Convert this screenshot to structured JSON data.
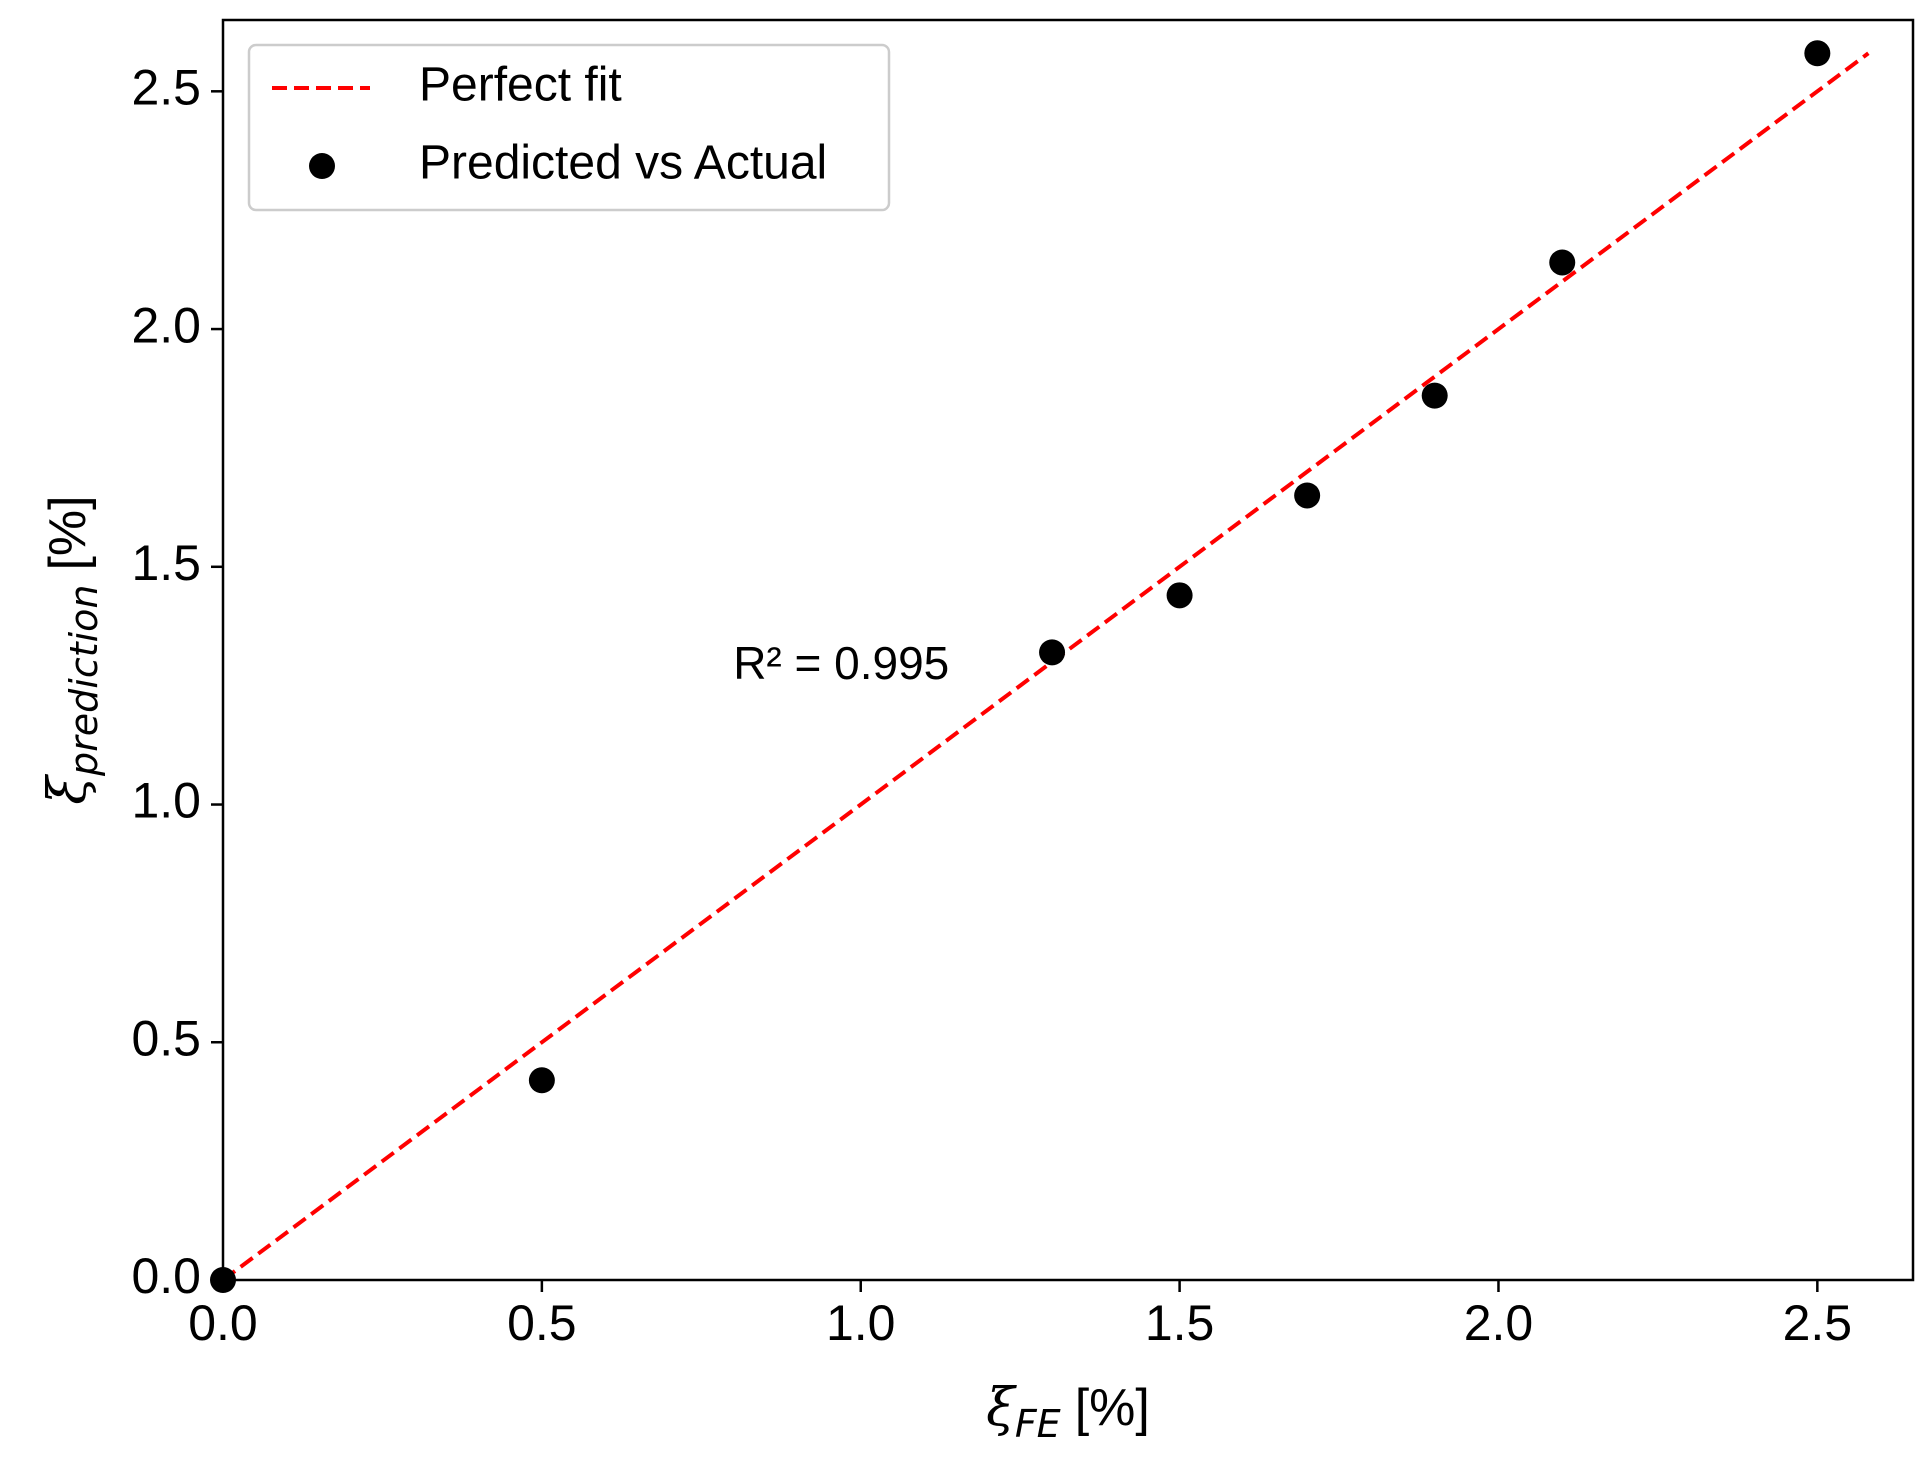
{
  "chart_data": {
    "type": "scatter",
    "x_axis": {
      "symbol": "ξ",
      "subscript": "FE",
      "unit": "[%]",
      "lim": [
        0.0,
        2.65
      ],
      "ticks": [
        0.0,
        0.5,
        1.0,
        1.5,
        2.0,
        2.5
      ],
      "tick_labels": [
        "0.0",
        "0.5",
        "1.0",
        "1.5",
        "2.0",
        "2.5"
      ]
    },
    "y_axis": {
      "symbol": "ξ",
      "subscript": "prediction",
      "unit": "[%]",
      "lim": [
        0.0,
        2.65
      ],
      "ticks": [
        0.0,
        0.5,
        1.0,
        1.5,
        2.0,
        2.5
      ],
      "tick_labels": [
        "0.0",
        "0.5",
        "1.0",
        "1.5",
        "2.0",
        "2.5"
      ]
    },
    "grid": false,
    "legend_position": "top-left",
    "series": [
      {
        "name": "Perfect fit",
        "kind": "line",
        "style": "dashed",
        "color": "#ff0000",
        "x": [
          0.0,
          2.58
        ],
        "y": [
          0.0,
          2.58
        ]
      },
      {
        "name": "Predicted vs Actual",
        "kind": "scatter",
        "color": "#000000",
        "x": [
          0.0,
          0.5,
          1.3,
          1.5,
          1.7,
          1.9,
          2.1,
          2.5
        ],
        "y": [
          0.0,
          0.42,
          1.32,
          1.44,
          1.65,
          1.86,
          2.14,
          2.58
        ]
      }
    ],
    "annotations": [
      {
        "text": "R² = 0.995",
        "x": 0.8,
        "y": 1.29
      }
    ]
  }
}
